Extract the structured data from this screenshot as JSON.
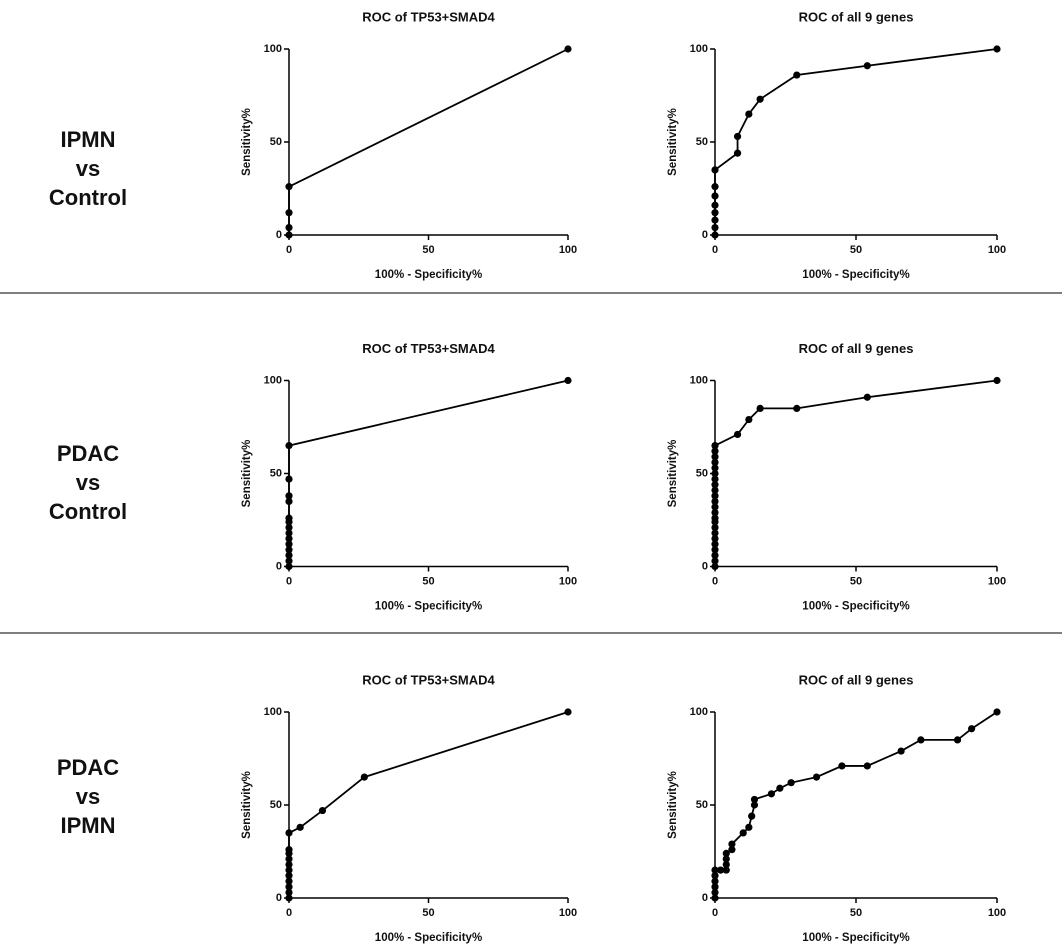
{
  "row_labels": [
    [
      "IPMN",
      "vs",
      "Control"
    ],
    [
      "PDAC",
      "vs",
      "Control"
    ],
    [
      "PDAC",
      "vs",
      "IPMN"
    ]
  ],
  "chart_data": [
    {
      "type": "line",
      "title": "ROC of TP53+SMAD4",
      "xlabel": "100% - Specificity%",
      "ylabel": "Sensitivity%",
      "color": "#000000",
      "x": [
        0,
        0,
        0,
        0,
        100
      ],
      "values": [
        0,
        4,
        12,
        26,
        100
      ],
      "xlim": [
        0,
        100
      ],
      "ylim": [
        0,
        100
      ],
      "xticks": [
        0,
        50,
        100
      ],
      "yticks": [
        0,
        50,
        100
      ]
    },
    {
      "type": "line",
      "title": "ROC of all 9 genes",
      "xlabel": "100% - Specificity%",
      "ylabel": "Sensitivity%",
      "color": "#000000",
      "x": [
        0,
        0,
        0,
        0,
        0,
        0,
        0,
        0,
        8,
        8,
        12,
        16,
        29,
        54,
        100
      ],
      "values": [
        0,
        4,
        8,
        12,
        16,
        21,
        26,
        35,
        44,
        53,
        65,
        73,
        86,
        91,
        100
      ],
      "xlim": [
        0,
        100
      ],
      "ylim": [
        0,
        100
      ],
      "xticks": [
        0,
        50,
        100
      ],
      "yticks": [
        0,
        50,
        100
      ]
    },
    {
      "type": "line",
      "title": "ROC of TP53+SMAD4",
      "xlabel": "100% - Specificity%",
      "ylabel": "Sensitivity%",
      "color": "#000000",
      "x": [
        0,
        0,
        0,
        0,
        0,
        0,
        0,
        0,
        0,
        0,
        0,
        0,
        0,
        0,
        100
      ],
      "values": [
        0,
        3,
        6,
        9,
        12,
        15,
        18,
        21,
        24,
        26,
        35,
        38,
        47,
        65,
        100
      ],
      "xlim": [
        0,
        100
      ],
      "ylim": [
        0,
        100
      ],
      "xticks": [
        0,
        50,
        100
      ],
      "yticks": [
        0,
        50,
        100
      ]
    },
    {
      "type": "line",
      "title": "ROC of all 9 genes",
      "xlabel": "100% - Specificity%",
      "ylabel": "Sensitivity%",
      "color": "#000000",
      "x": [
        0,
        0,
        0,
        0,
        0,
        0,
        0,
        0,
        0,
        0,
        0,
        0,
        0,
        0,
        0,
        0,
        0,
        0,
        0,
        0,
        0,
        0,
        0,
        8,
        12,
        16,
        29,
        54,
        100
      ],
      "values": [
        0,
        3,
        6,
        9,
        12,
        15,
        18,
        21,
        24,
        26,
        29,
        32,
        35,
        38,
        41,
        44,
        47,
        50,
        53,
        56,
        59,
        62,
        65,
        71,
        79,
        85,
        85,
        91,
        100
      ],
      "xlim": [
        0,
        100
      ],
      "ylim": [
        0,
        100
      ],
      "xticks": [
        0,
        50,
        100
      ],
      "yticks": [
        0,
        50,
        100
      ]
    },
    {
      "type": "line",
      "title": "ROC of TP53+SMAD4",
      "xlabel": "100% - Specificity%",
      "ylabel": "Sensitivity%",
      "color": "#000000",
      "x": [
        0,
        0,
        0,
        0,
        0,
        0,
        0,
        0,
        0,
        0,
        0,
        4,
        12,
        27,
        100
      ],
      "values": [
        0,
        3,
        6,
        9,
        12,
        15,
        18,
        21,
        24,
        26,
        35,
        38,
        47,
        65,
        100
      ],
      "xlim": [
        0,
        100
      ],
      "ylim": [
        0,
        100
      ],
      "xticks": [
        0,
        50,
        100
      ],
      "yticks": [
        0,
        50,
        100
      ]
    },
    {
      "type": "line",
      "title": "ROC of all 9 genes",
      "xlabel": "100% - Specificity%",
      "ylabel": "Sensitivity%",
      "color": "#000000",
      "x": [
        0,
        0,
        0,
        0,
        0,
        0,
        2,
        4,
        4,
        4,
        4,
        6,
        6,
        10,
        12,
        13,
        14,
        14,
        20,
        23,
        27,
        36,
        45,
        54,
        66,
        73,
        86,
        91,
        100
      ],
      "values": [
        0,
        3,
        6,
        9,
        12,
        15,
        15,
        15,
        18,
        21,
        24,
        26,
        29,
        35,
        38,
        44,
        50,
        53,
        56,
        59,
        62,
        65,
        71,
        71,
        79,
        85,
        85,
        91,
        100
      ],
      "xlim": [
        0,
        100
      ],
      "ylim": [
        0,
        100
      ],
      "xticks": [
        0,
        50,
        100
      ],
      "yticks": [
        0,
        50,
        100
      ]
    }
  ]
}
